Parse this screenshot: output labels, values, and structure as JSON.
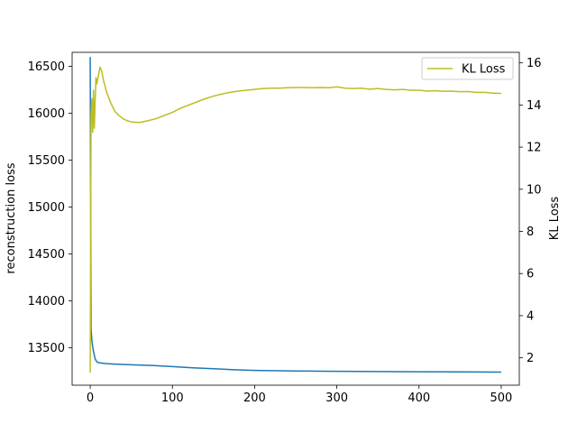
{
  "chart_data": {
    "type": "line",
    "title": "",
    "xlabel": "",
    "ylabel_left": "reconstruction loss",
    "ylabel_right": "KL Loss",
    "xlim": [
      -22,
      522
    ],
    "ylim_left": [
      13100,
      16650
    ],
    "ylim_right": [
      0.7,
      16.5
    ],
    "xticks": [
      0,
      100,
      200,
      300,
      400,
      500
    ],
    "yticks_left": [
      13500,
      14000,
      14500,
      15000,
      15500,
      16000,
      16500
    ],
    "yticks_right": [
      2,
      4,
      6,
      8,
      10,
      12,
      14,
      16
    ],
    "grid": false,
    "legend": {
      "position": "upper-right",
      "entries": [
        "KL Loss"
      ]
    },
    "series": [
      {
        "axis": "left",
        "color": "#1f77b4",
        "x": [
          0,
          0.5,
          1,
          2,
          3,
          4,
          6,
          8,
          10,
          15,
          20,
          30,
          50,
          75,
          100,
          125,
          150,
          175,
          200,
          250,
          300,
          350,
          400,
          450,
          500
        ],
        "y": [
          16600,
          15200,
          13700,
          13580,
          13510,
          13460,
          13380,
          13350,
          13340,
          13335,
          13330,
          13325,
          13318,
          13310,
          13298,
          13285,
          13275,
          13265,
          13258,
          13252,
          13248,
          13245,
          13243,
          13242,
          13240
        ]
      },
      {
        "name": "KL Loss",
        "axis": "right",
        "color": "#bcbd22",
        "x": [
          0,
          1,
          2,
          3,
          4,
          5,
          6,
          7,
          8,
          10,
          12,
          14,
          16,
          18,
          20,
          25,
          30,
          35,
          40,
          45,
          50,
          55,
          60,
          70,
          80,
          90,
          100,
          110,
          120,
          130,
          140,
          150,
          160,
          170,
          180,
          190,
          200,
          210,
          220,
          230,
          240,
          250,
          260,
          270,
          280,
          290,
          300,
          310,
          320,
          330,
          340,
          350,
          360,
          370,
          380,
          390,
          400,
          410,
          420,
          430,
          440,
          450,
          460,
          470,
          480,
          490,
          500
        ],
        "y": [
          1.3,
          13.5,
          14.3,
          12.7,
          14.7,
          12.9,
          14.2,
          15.3,
          15.0,
          15.4,
          15.8,
          15.6,
          15.2,
          14.9,
          14.6,
          14.1,
          13.7,
          13.5,
          13.35,
          13.25,
          13.2,
          13.18,
          13.17,
          13.25,
          13.35,
          13.5,
          13.65,
          13.85,
          14.0,
          14.15,
          14.3,
          14.42,
          14.52,
          14.6,
          14.66,
          14.7,
          14.74,
          14.78,
          14.8,
          14.8,
          14.82,
          14.83,
          14.83,
          14.82,
          14.83,
          14.82,
          14.86,
          14.8,
          14.78,
          14.8,
          14.75,
          14.78,
          14.74,
          14.72,
          14.74,
          14.7,
          14.7,
          14.66,
          14.68,
          14.65,
          14.66,
          14.63,
          14.64,
          14.6,
          14.6,
          14.56,
          14.55
        ]
      }
    ]
  }
}
